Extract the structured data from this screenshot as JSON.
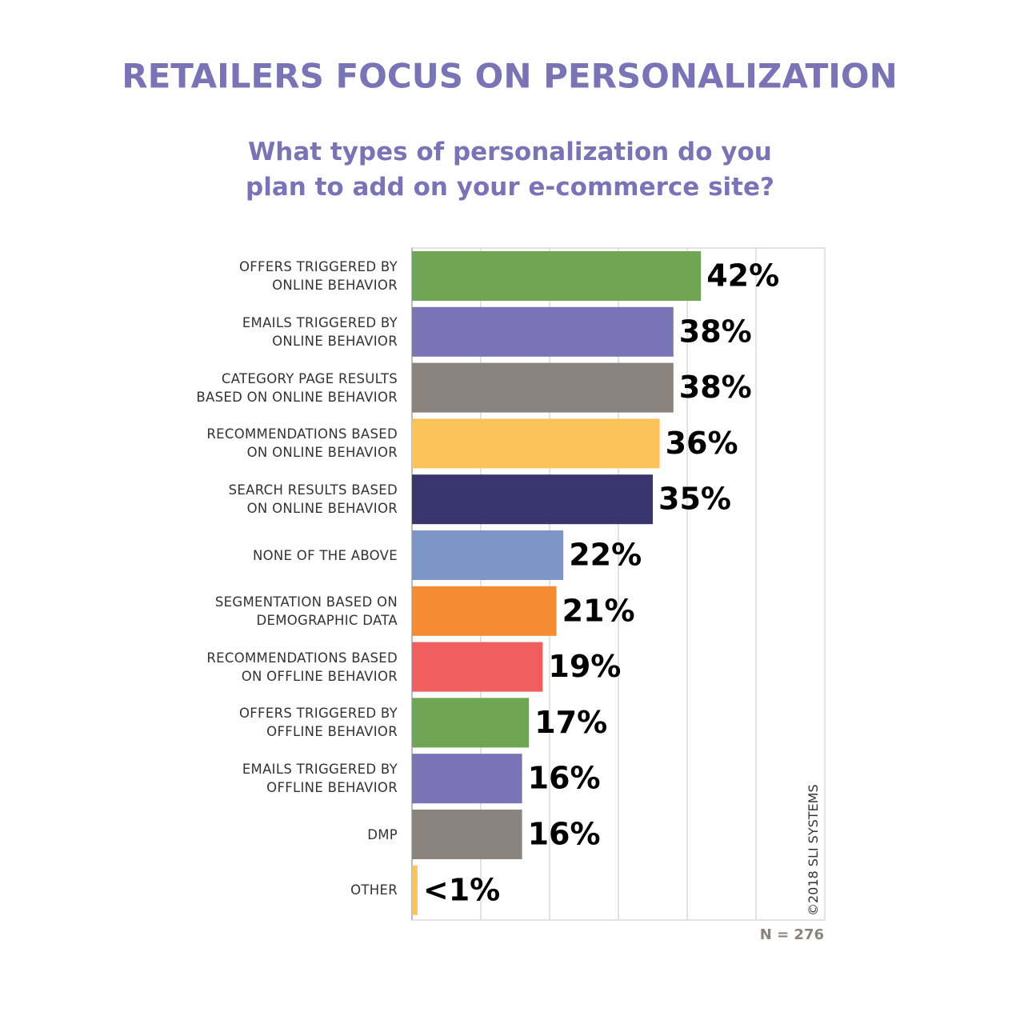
{
  "chart_data": {
    "type": "barh",
    "title": "RETAILERS FOCUS ON PERSONALIZATION",
    "subtitle": "What types of personalization do you\nplan to add on your e-commerce site?",
    "categories": [
      "OFFERS TRIGGERED BY\nONLINE BEHAVIOR",
      "EMAILS TRIGGERED BY\nONLINE BEHAVIOR",
      "CATEGORY PAGE RESULTS\nBASED ON ONLINE BEHAVIOR",
      "RECOMMENDATIONS BASED\nON ONLINE BEHAVIOR",
      "SEARCH RESULTS BASED\nON ONLINE BEHAVIOR",
      "NONE OF THE ABOVE",
      "SEGMENTATION BASED ON\nDEMOGRAPHIC DATA",
      "RECOMMENDATIONS BASED\nON OFFLINE BEHAVIOR",
      "OFFERS TRIGGERED BY\nOFFLINE BEHAVIOR",
      "EMAILS TRIGGERED BY\nOFFLINE BEHAVIOR",
      "DMP",
      "OTHER"
    ],
    "values": [
      42,
      38,
      38,
      36,
      35,
      22,
      21,
      19,
      17,
      16,
      16,
      0.8
    ],
    "value_labels": [
      "42%",
      "38%",
      "38%",
      "36%",
      "35%",
      "22%",
      "21%",
      "19%",
      "17%",
      "16%",
      "16%",
      "<1%"
    ],
    "colors": [
      "#6fa553",
      "#7a74b6",
      "#8b837d",
      "#fdc25a",
      "#38356f",
      "#7e95c8",
      "#f58b35",
      "#f05e5d",
      "#6fa553",
      "#7a74b6",
      "#8b837d",
      "#fdc25a"
    ],
    "xlim": [
      0,
      60
    ],
    "xticks": [
      0,
      10,
      20,
      30,
      40,
      50,
      60
    ],
    "grid": true,
    "source": "©2018 SLI SYSTEMS",
    "note": "N = 276"
  }
}
